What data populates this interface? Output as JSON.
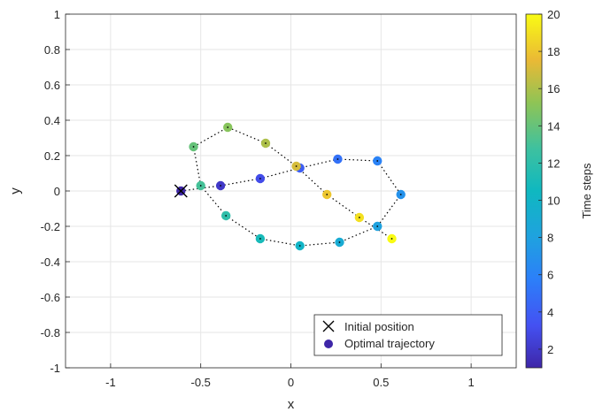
{
  "chart_data": {
    "type": "scatter",
    "title": "",
    "xlabel": "x",
    "ylabel": "y",
    "xlim": [
      -1.25,
      1.25
    ],
    "ylim": [
      -1,
      1
    ],
    "xticks": [
      -1,
      -0.5,
      0,
      0.5,
      1
    ],
    "xtick_labels": [
      "-1",
      "-0.5",
      "0",
      "0.5",
      "1"
    ],
    "yticks": [
      -1,
      -0.8,
      -0.6,
      -0.4,
      -0.2,
      0,
      0.2,
      0.4,
      0.6,
      0.8,
      1
    ],
    "ytick_labels": [
      "-1",
      "-0.8",
      "-0.6",
      "-0.4",
      "-0.2",
      "0",
      "0.2",
      "0.4",
      "0.6",
      "0.8",
      "1"
    ],
    "grid": true,
    "series": [
      {
        "name": "Optimal trajectory",
        "style": "dotted line with filled circles colored by time step",
        "points": [
          {
            "t": 1,
            "x": -0.61,
            "y": 0.0
          },
          {
            "t": 2,
            "x": -0.39,
            "y": 0.03
          },
          {
            "t": 3,
            "x": -0.17,
            "y": 0.07
          },
          {
            "t": 4,
            "x": 0.05,
            "y": 0.13
          },
          {
            "t": 5,
            "x": 0.26,
            "y": 0.18
          },
          {
            "t": 6,
            "x": 0.48,
            "y": 0.17
          },
          {
            "t": 7,
            "x": 0.61,
            "y": -0.02
          },
          {
            "t": 8,
            "x": 0.48,
            "y": -0.2
          },
          {
            "t": 9,
            "x": 0.27,
            "y": -0.29
          },
          {
            "t": 10,
            "x": 0.05,
            "y": -0.31
          },
          {
            "t": 11,
            "x": -0.17,
            "y": -0.27
          },
          {
            "t": 12,
            "x": -0.36,
            "y": -0.14
          },
          {
            "t": 13,
            "x": -0.5,
            "y": 0.03
          },
          {
            "t": 14,
            "x": -0.54,
            "y": 0.25
          },
          {
            "t": 15,
            "x": -0.35,
            "y": 0.36
          },
          {
            "t": 16,
            "x": -0.14,
            "y": 0.27
          },
          {
            "t": 17,
            "x": 0.03,
            "y": 0.14
          },
          {
            "t": 18,
            "x": 0.2,
            "y": -0.02
          },
          {
            "t": 19,
            "x": 0.38,
            "y": -0.15
          },
          {
            "t": 20,
            "x": 0.56,
            "y": -0.27
          }
        ]
      },
      {
        "name": "Initial position",
        "marker": "x",
        "points": [
          {
            "x": -0.61,
            "y": 0.0
          }
        ]
      }
    ],
    "legend": {
      "position": "bottom-right",
      "entries": [
        "Initial position",
        "Optimal trajectory"
      ]
    },
    "colorbar": {
      "label": "Time steps",
      "range": [
        1,
        20
      ],
      "colormap": "parula",
      "ticks": [
        2,
        4,
        6,
        8,
        10,
        12,
        14,
        16,
        18,
        20
      ],
      "tick_labels": [
        "2",
        "4",
        "6",
        "8",
        "10",
        "12",
        "14",
        "16",
        "18",
        "20"
      ]
    },
    "colors": {
      "grid": "#e6e6e6",
      "axis": "#262626",
      "trajectory_line": "#000000",
      "legend_marker": "#3e26a8"
    }
  }
}
